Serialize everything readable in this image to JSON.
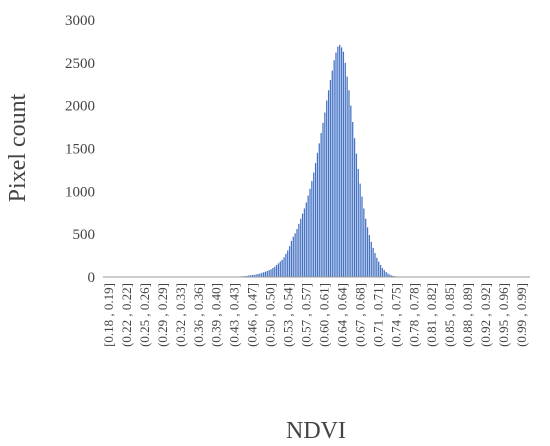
{
  "chart_data": {
    "type": "bar",
    "xlabel": "NDVI",
    "ylabel": "Pixel count",
    "ylim": [
      0,
      3000
    ],
    "yticks": [
      0,
      500,
      1000,
      1500,
      2000,
      2500,
      3000
    ],
    "grid": false,
    "legend": "none",
    "bar_color": "#4472C4",
    "x_tick_labels": [
      "[0.18 , 0.19]",
      "(0.22 , 0.22]",
      "(0.25 , 0.26]",
      "(0.29 , 0.29]",
      "(0.32 , 0.33]",
      "(0.36 , 0.36]",
      "(0.39 , 0.40]",
      "(0.43 , 0.43]",
      "(0.46 , 0.47]",
      "(0.50 , 0.50]",
      "(0.53 , 0.54]",
      "(0.57 , 0.57]",
      "(0.60 , 0.61]",
      "(0.64 , 0.64]",
      "(0.67 , 0.68]",
      "(0.71 , 0.71]",
      "(0.74 , 0.75]",
      "(0.78 , 0.78]",
      "(0.81 , 0.82]",
      "(0.85 , 0.85]",
      "(0.88 , 0.89]",
      "(0.92 , 0.92]",
      "(0.95 , 0.96]",
      "(0.99 , 0.99]"
    ],
    "bin_start": 0.18,
    "bin_width": 0.0085,
    "values": [
      0,
      0,
      0,
      0,
      0,
      0,
      0,
      0,
      0,
      0,
      0,
      0,
      0,
      0,
      0,
      0,
      0,
      0,
      0,
      0,
      0,
      0,
      0,
      0,
      0,
      0,
      0,
      0,
      0,
      0,
      0,
      0,
      0,
      0,
      0,
      0,
      0,
      0,
      0,
      0,
      0,
      0,
      0,
      0,
      0,
      0,
      0,
      0,
      0,
      0,
      0,
      0,
      0,
      0,
      0,
      0,
      0,
      0,
      0,
      0,
      0,
      0,
      0,
      0,
      0,
      0,
      0,
      0,
      0,
      0,
      3,
      3,
      5,
      6,
      7,
      9,
      11,
      14,
      18,
      20,
      23,
      25,
      30,
      35,
      40,
      48,
      55,
      62,
      70,
      80,
      90,
      105,
      120,
      140,
      160,
      180,
      200,
      230,
      270,
      310,
      360,
      420,
      470,
      510,
      560,
      620,
      680,
      740,
      800,
      870,
      950,
      1030,
      1120,
      1220,
      1330,
      1450,
      1560,
      1680,
      1800,
      1920,
      2060,
      2180,
      2300,
      2410,
      2530,
      2620,
      2690,
      2710,
      2680,
      2630,
      2500,
      2340,
      2180,
      2000,
      1810,
      1620,
      1440,
      1260,
      1090,
      940,
      800,
      680,
      580,
      490,
      410,
      340,
      280,
      225,
      180,
      140,
      105,
      80,
      58,
      40,
      28,
      18,
      12,
      8,
      5,
      3,
      0,
      0,
      0,
      0,
      0,
      0,
      0,
      0,
      0,
      0,
      0,
      0,
      0,
      0,
      0,
      0,
      0,
      0,
      0,
      0,
      0,
      0,
      0,
      0,
      0,
      0,
      0,
      0,
      0,
      0,
      0,
      0,
      0,
      0,
      0,
      0,
      0,
      0,
      0,
      0,
      0,
      0,
      0,
      0,
      0,
      0,
      0,
      0,
      0,
      0,
      0,
      0,
      0,
      0,
      0,
      0,
      0,
      0,
      0,
      0,
      0,
      0,
      0,
      0,
      0,
      0,
      0,
      0,
      0,
      0
    ]
  }
}
